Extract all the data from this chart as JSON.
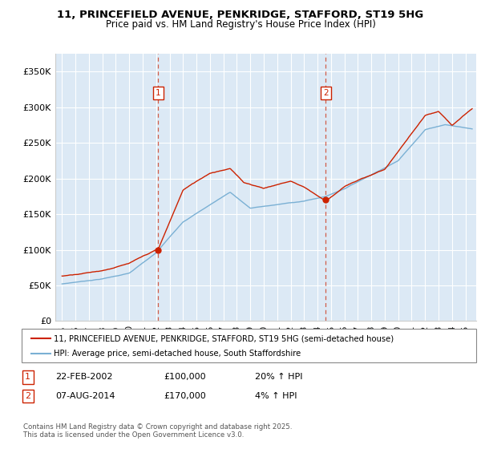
{
  "title_line1": "11, PRINCEFIELD AVENUE, PENKRIDGE, STAFFORD, ST19 5HG",
  "title_line2": "Price paid vs. HM Land Registry's House Price Index (HPI)",
  "ylim": [
    0,
    375000
  ],
  "yticks": [
    0,
    50000,
    100000,
    150000,
    200000,
    250000,
    300000,
    350000
  ],
  "ytick_labels": [
    "£0",
    "£50K",
    "£100K",
    "£150K",
    "£200K",
    "£250K",
    "£300K",
    "£350K"
  ],
  "plot_bg_color": "#dce9f5",
  "red_color": "#cc2200",
  "blue_color": "#7ab0d4",
  "marker1_date": 2002.14,
  "marker1_price": 100000,
  "marker2_date": 2014.6,
  "marker2_price": 170000,
  "legend_label_red": "11, PRINCEFIELD AVENUE, PENKRIDGE, STAFFORD, ST19 5HG (semi-detached house)",
  "legend_label_blue": "HPI: Average price, semi-detached house, South Staffordshire",
  "annotation1_label": "1",
  "annotation1_text": "22-FEB-2002",
  "annotation1_price": "£100,000",
  "annotation1_hpi": "20% ↑ HPI",
  "annotation2_label": "2",
  "annotation2_text": "07-AUG-2014",
  "annotation2_price": "£170,000",
  "annotation2_hpi": "4% ↑ HPI",
  "copyright_text": "Contains HM Land Registry data © Crown copyright and database right 2025.\nThis data is licensed under the Open Government Licence v3.0.",
  "xmin": 1994.5,
  "xmax": 2025.8,
  "xtick_start": 1995,
  "xtick_end": 2025
}
